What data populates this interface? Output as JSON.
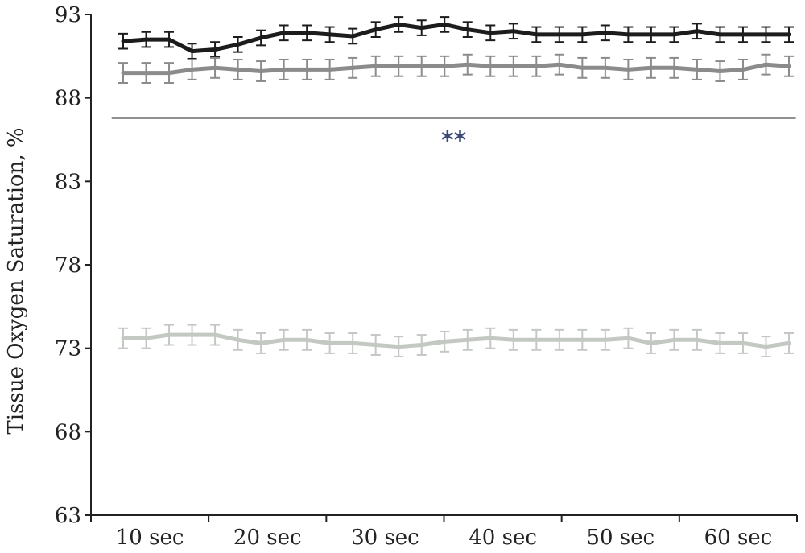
{
  "chart_data": {
    "type": "line",
    "title": "",
    "xlabel": "",
    "ylabel": "Tissue Oxygen Saturation, %",
    "ylim": [
      63,
      93
    ],
    "y_ticks": [
      "63",
      "68",
      "73",
      "78",
      "83",
      "88",
      "93"
    ],
    "x_tick_labels": [
      "10 sec",
      "20 sec",
      "30 sec",
      "40 sec",
      "50 sec",
      "60 sec"
    ],
    "x": [
      1,
      2,
      3,
      4,
      5,
      6,
      7,
      8,
      9,
      10,
      11,
      12,
      13,
      14,
      15,
      16,
      17,
      18,
      19,
      20,
      21,
      22,
      23,
      24,
      25,
      26,
      27,
      28,
      29,
      30
    ],
    "series": [
      {
        "color": "#1c1c1c",
        "values": [
          91.4,
          91.5,
          91.5,
          90.8,
          90.9,
          91.2,
          91.6,
          91.9,
          91.9,
          91.8,
          91.7,
          92.1,
          92.4,
          92.2,
          92.4,
          92.1,
          91.9,
          92.0,
          91.8,
          91.8,
          91.8,
          91.9,
          91.8,
          91.8,
          91.8,
          92.0,
          91.8,
          91.8,
          91.8,
          91.8
        ],
        "error": 0.45
      },
      {
        "color": "#8b8b8b",
        "values": [
          89.5,
          89.5,
          89.5,
          89.7,
          89.8,
          89.7,
          89.6,
          89.7,
          89.7,
          89.7,
          89.8,
          89.9,
          89.9,
          89.9,
          89.9,
          90.0,
          89.9,
          89.9,
          89.9,
          90.0,
          89.8,
          89.8,
          89.7,
          89.8,
          89.8,
          89.7,
          89.6,
          89.7,
          90.0,
          89.9
        ],
        "error": 0.6
      },
      {
        "color": "#c3c8c3",
        "values": [
          73.6,
          73.6,
          73.8,
          73.8,
          73.8,
          73.5,
          73.3,
          73.5,
          73.5,
          73.3,
          73.3,
          73.2,
          73.1,
          73.2,
          73.4,
          73.5,
          73.6,
          73.5,
          73.5,
          73.5,
          73.5,
          73.5,
          73.6,
          73.3,
          73.5,
          73.5,
          73.3,
          73.3,
          73.1,
          73.3
        ],
        "error": 0.6
      }
    ],
    "annotation": {
      "text": "**",
      "line_y": 86.8,
      "x_start": 0.5,
      "x_end": 30.3
    }
  }
}
